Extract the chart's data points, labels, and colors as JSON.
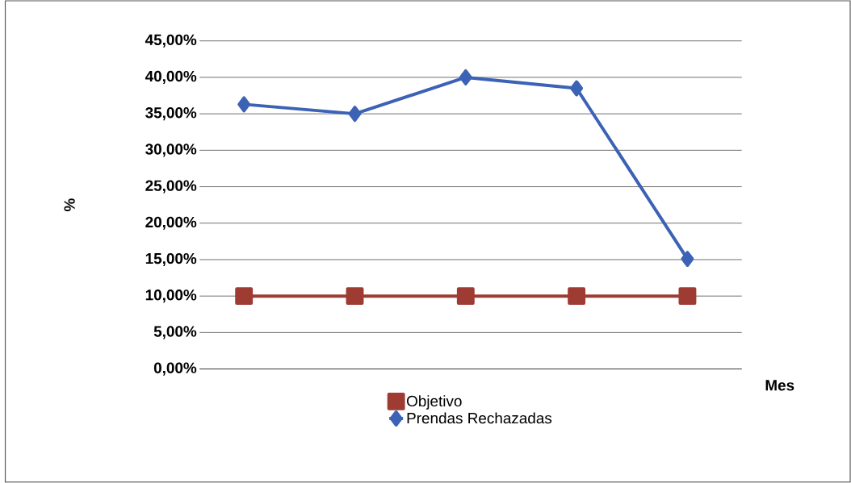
{
  "chart_data": {
    "type": "line",
    "xlabel": "Mes",
    "ylabel": "%",
    "categories": [
      null,
      null,
      null,
      null,
      null
    ],
    "series": [
      {
        "name": "Objetivo",
        "color": "#9e3b33",
        "marker": "square",
        "values": [
          10,
          10,
          10,
          10,
          10
        ]
      },
      {
        "name": "Prendas Rechazadas",
        "color": "#3c62b5",
        "marker": "diamond",
        "values": [
          36.3,
          35,
          40,
          38.5,
          15.1
        ]
      }
    ],
    "ylim": [
      0,
      45
    ],
    "yticks": [
      {
        "value": 0,
        "label": "0,00%"
      },
      {
        "value": 5,
        "label": "5,00%"
      },
      {
        "value": 10,
        "label": "10,00%"
      },
      {
        "value": 15,
        "label": "15,00%"
      },
      {
        "value": 20,
        "label": "20,00%"
      },
      {
        "value": 25,
        "label": "25,00%"
      },
      {
        "value": 30,
        "label": "30,00%"
      },
      {
        "value": 35,
        "label": "35,00%"
      },
      {
        "value": 40,
        "label": "40,00%"
      },
      {
        "value": 45,
        "label": "45,00%"
      }
    ],
    "grid": "y",
    "legend": "bottom",
    "line_style": "solid"
  }
}
